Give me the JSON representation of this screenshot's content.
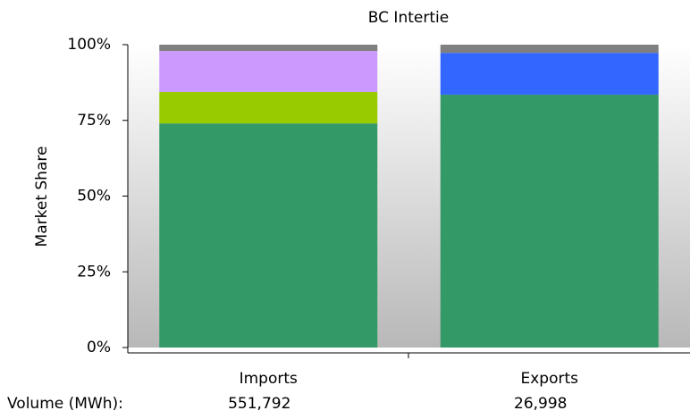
{
  "chart_data": {
    "type": "stacked-bar-100",
    "title": "BC Intertie",
    "y_label": "Market Share",
    "categories": [
      "Imports",
      "Exports"
    ],
    "series": [
      {
        "color": "#339966",
        "values": [
          74,
          83.5
        ]
      },
      {
        "color": "#99cc00",
        "values": [
          10.4,
          0
        ]
      },
      {
        "color": "#cc99ff",
        "values": [
          13.5,
          0
        ]
      },
      {
        "color": "#3366ff",
        "values": [
          0,
          13.8
        ]
      },
      {
        "color": "#808080",
        "values": [
          2.1,
          2.7
        ]
      }
    ],
    "ylim": [
      0,
      100
    ],
    "yticks": [
      {
        "value": 0,
        "label": "0%"
      },
      {
        "value": 25,
        "label": "25%"
      },
      {
        "value": 50,
        "label": "50%"
      },
      {
        "value": 75,
        "label": "75%"
      },
      {
        "value": 100,
        "label": "100%"
      }
    ],
    "volume": {
      "label": "Volume (MWh):",
      "values": [
        551792,
        26998
      ],
      "value_labels": [
        "551,792",
        "26,998"
      ]
    }
  }
}
